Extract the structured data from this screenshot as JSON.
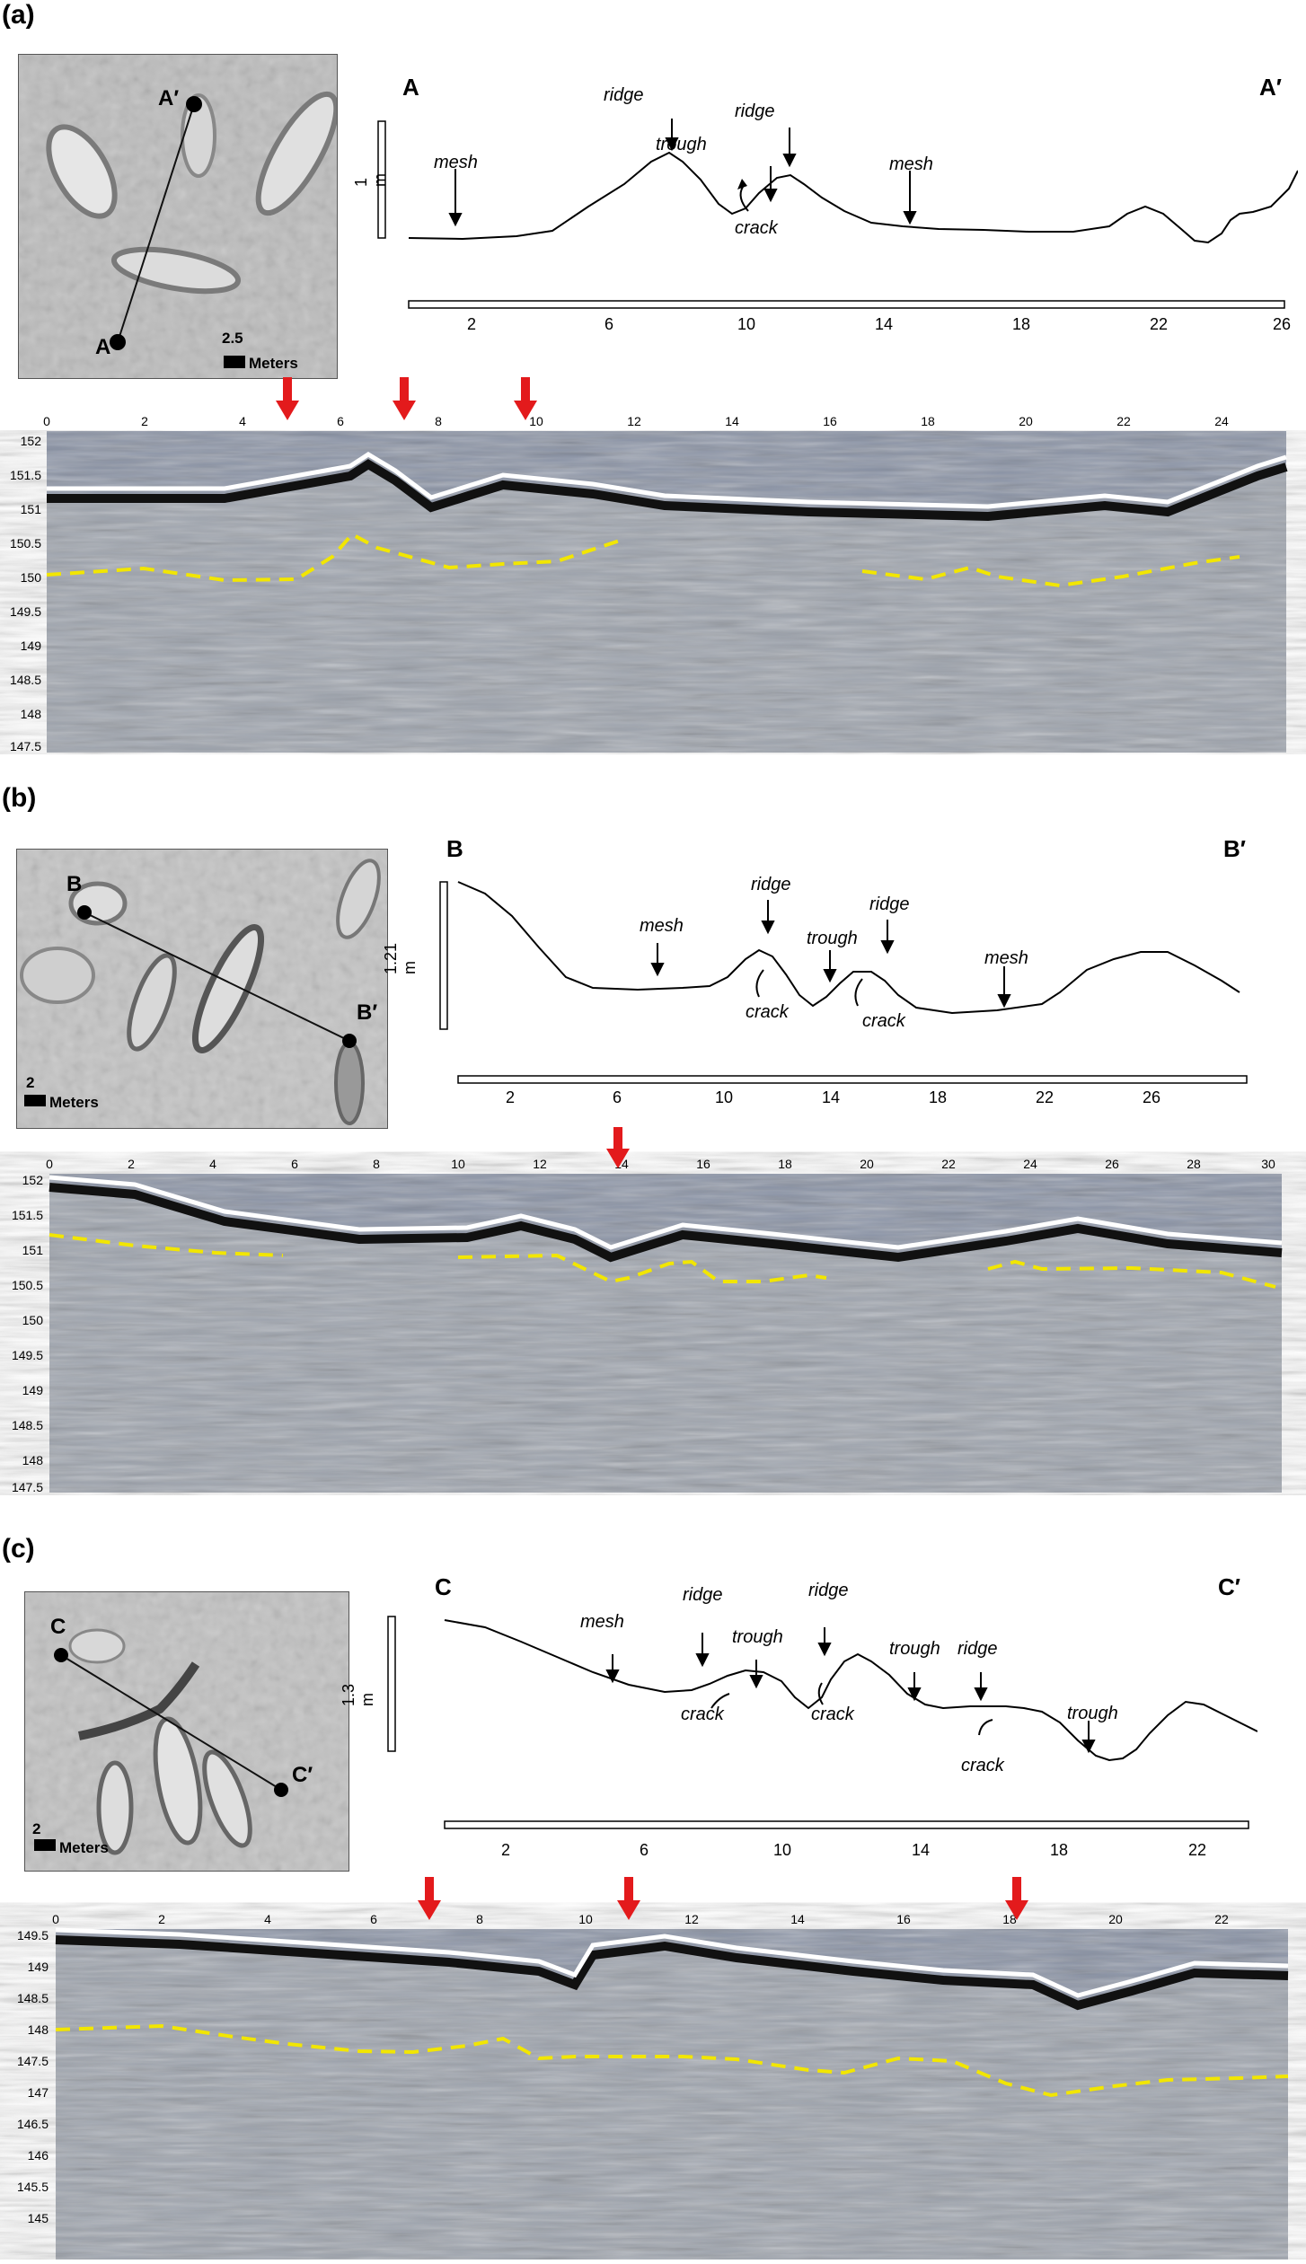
{
  "panels": [
    {
      "id": "a",
      "label": "(a)",
      "map": {
        "start": "A",
        "end": "A′",
        "scale_value": "2.5",
        "scale_unit": "Meters"
      },
      "profile": {
        "start": "A",
        "end": "A′",
        "vscale": "1 m",
        "xticks": [
          "2",
          "6",
          "10",
          "14",
          "18",
          "22",
          "26"
        ],
        "annotations": [
          {
            "text": "mesh"
          },
          {
            "text": "ridge"
          },
          {
            "text": "trough"
          },
          {
            "text": "ridge"
          },
          {
            "text": "crack"
          },
          {
            "text": "mesh"
          }
        ]
      },
      "gpr": {
        "xticks": [
          "0",
          "2",
          "4",
          "6",
          "8",
          "10",
          "12",
          "14",
          "16",
          "18",
          "20",
          "22",
          "24"
        ],
        "yticks": [
          "152",
          "151.5",
          "151",
          "150.5",
          "150",
          "149.5",
          "149",
          "148.5",
          "148",
          "147.5"
        ],
        "arrows_x": [
          5,
          7.3,
          9.8
        ]
      }
    },
    {
      "id": "b",
      "label": "(b)",
      "map": {
        "start": "B",
        "end": "B′",
        "scale_value": "2",
        "scale_unit": "Meters"
      },
      "profile": {
        "start": "B",
        "end": "B′",
        "vscale": "1.21 m",
        "xticks": [
          "2",
          "6",
          "10",
          "14",
          "18",
          "22",
          "26"
        ],
        "annotations": [
          {
            "text": "mesh"
          },
          {
            "text": "ridge"
          },
          {
            "text": "trough"
          },
          {
            "text": "ridge"
          },
          {
            "text": "crack"
          },
          {
            "text": "crack"
          },
          {
            "text": "mesh"
          }
        ]
      },
      "gpr": {
        "xticks": [
          "0",
          "2",
          "4",
          "6",
          "8",
          "10",
          "12",
          "14",
          "16",
          "18",
          "20",
          "22",
          "24",
          "26",
          "28",
          "30"
        ],
        "yticks": [
          "152",
          "151.5",
          "151",
          "150.5",
          "150",
          "149.5",
          "149",
          "148.5",
          "148",
          "147.5"
        ],
        "arrows_x": [
          14
        ]
      }
    },
    {
      "id": "c",
      "label": "(c)",
      "map": {
        "start": "C",
        "end": "C′",
        "scale_value": "2",
        "scale_unit": "Meters"
      },
      "profile": {
        "start": "C",
        "end": "C′",
        "vscale": "1.3 m",
        "xticks": [
          "2",
          "6",
          "10",
          "14",
          "18",
          "22"
        ],
        "annotations": [
          {
            "text": "mesh"
          },
          {
            "text": "ridge"
          },
          {
            "text": "trough"
          },
          {
            "text": "ridge"
          },
          {
            "text": "crack"
          },
          {
            "text": "crack"
          },
          {
            "text": "trough"
          },
          {
            "text": "ridge"
          },
          {
            "text": "crack"
          },
          {
            "text": "trough"
          }
        ]
      },
      "gpr": {
        "xticks": [
          "0",
          "2",
          "4",
          "6",
          "8",
          "10",
          "12",
          "14",
          "16",
          "18",
          "20",
          "22"
        ],
        "yticks": [
          "149.5",
          "149",
          "148.5",
          "148",
          "147.5",
          "147",
          "146.5",
          "146",
          "145.5",
          "145"
        ],
        "arrows_x": [
          7,
          10.8,
          18
        ]
      }
    }
  ],
  "colors": {
    "gpr_bg": "#8a93a6",
    "horizon": "#f2e600",
    "arrow": "#e31a1c"
  }
}
